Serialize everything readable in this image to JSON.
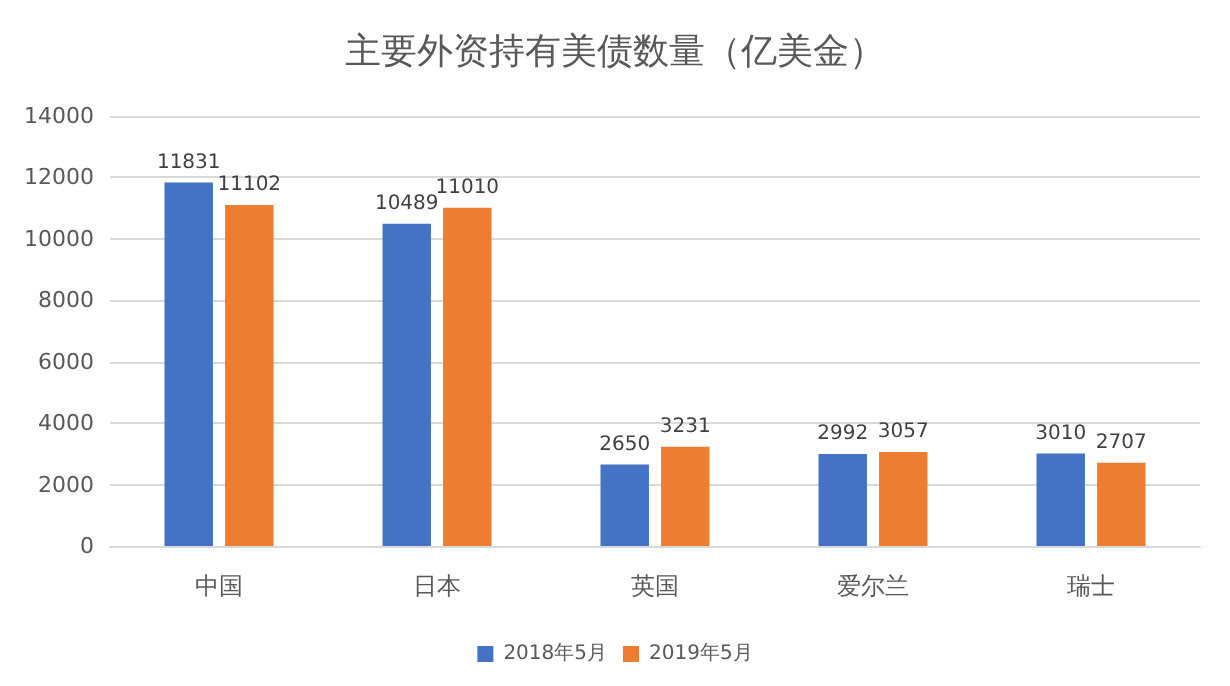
{
  "chart_data": {
    "type": "bar",
    "title": "主要外资持有美债数量（亿美金）",
    "categories": [
      "中国",
      "日本",
      "英国",
      "爱尔兰",
      "瑞士"
    ],
    "series": [
      {
        "name": "2018年5月",
        "color": "#4472c4",
        "values": [
          11831,
          10489,
          2650,
          2992,
          3010
        ]
      },
      {
        "name": "2019年5月",
        "color": "#ed7d31",
        "values": [
          11102,
          11010,
          3231,
          3057,
          2707
        ]
      }
    ],
    "ylim": [
      0,
      14000
    ],
    "yticks": [
      0,
      2000,
      4000,
      6000,
      8000,
      10000,
      12000,
      14000
    ],
    "grid": "y",
    "legend": "bottom",
    "data_labels": true
  }
}
